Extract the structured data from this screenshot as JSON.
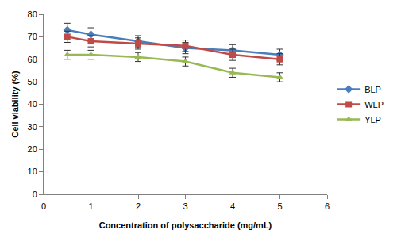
{
  "chart_data": {
    "type": "line",
    "x_label": "Concentration of polysaccharide (mg/mL)",
    "y_label": "Cell viability (%)",
    "x": [
      0.5,
      1,
      2,
      3,
      4,
      5
    ],
    "series": [
      {
        "name": "BLP",
        "color": "#4a7ebb",
        "marker": "diamond",
        "values": [
          73,
          71,
          68,
          65,
          64,
          62
        ],
        "errors": [
          3,
          3,
          2.5,
          2.5,
          2.5,
          2.5
        ]
      },
      {
        "name": "WLP",
        "color": "#be4b48",
        "marker": "square",
        "values": [
          70,
          68,
          67,
          66,
          62,
          60
        ],
        "errors": [
          2.5,
          2.5,
          2.5,
          2.5,
          2.5,
          2.5
        ]
      },
      {
        "name": "YLP",
        "color": "#98b954",
        "marker": "triangle-up",
        "values": [
          62,
          62,
          61,
          59,
          54,
          52
        ],
        "errors": [
          2,
          2,
          2,
          2,
          2,
          2
        ]
      }
    ],
    "xlim": [
      0,
      6
    ],
    "xticks": [
      0,
      1,
      2,
      3,
      4,
      5,
      6
    ],
    "ylim": [
      0,
      80
    ],
    "yticks": [
      0,
      10,
      20,
      30,
      40,
      50,
      60,
      70,
      80
    ],
    "grid": false,
    "legend": "right"
  }
}
